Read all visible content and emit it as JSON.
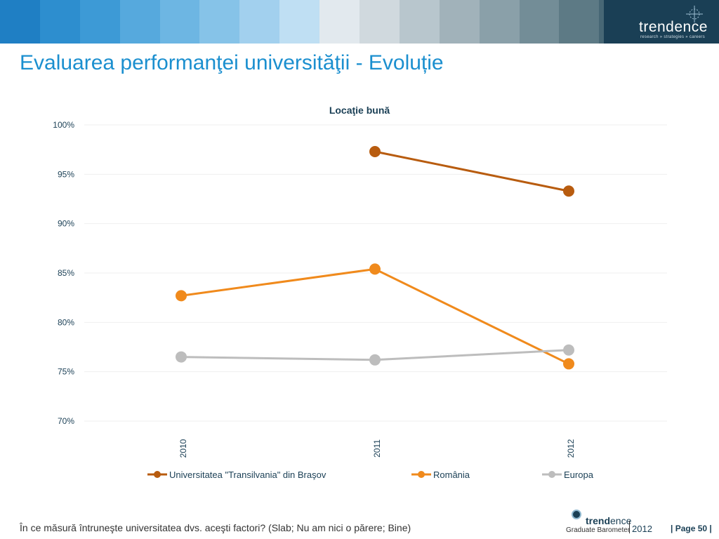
{
  "header": {
    "banner_colors": [
      "#1f7fc4",
      "#2d8ecf",
      "#3d9ad6",
      "#56a9dd",
      "#6db6e3",
      "#86c3e8",
      "#a2d0ee",
      "#bfdff3",
      "#e2e9ee",
      "#d0d9de",
      "#b8c6cd",
      "#a1b2ba",
      "#8aa0a9",
      "#738d97",
      "#5d7a85",
      "#476775",
      "#345666",
      "#244756"
    ],
    "brand_bg": "#1a3f55",
    "brand_name": "trendence",
    "brand_tagline": "research » strategies » careers"
  },
  "page_title": "Evaluarea performanţei universităţii - Evoluție",
  "chart_data": {
    "type": "line",
    "title": "Locaţie bună",
    "categories": [
      "2010",
      "2011",
      "2012"
    ],
    "y_ticks": [
      "100%",
      "95%",
      "90%",
      "85%",
      "80%",
      "75%",
      "70%"
    ],
    "ylim": [
      70,
      100
    ],
    "grid": true,
    "legend_position": "bottom",
    "series": [
      {
        "name": "Universitatea \"Transilvania\" din Braşov",
        "color": "#b85c0f",
        "values": [
          null,
          97.3,
          93.3
        ]
      },
      {
        "name": "România",
        "color": "#f08a1c",
        "values": [
          82.7,
          85.4,
          75.8
        ]
      },
      {
        "name": "Europa",
        "color": "#bdbdbd",
        "values": [
          76.5,
          76.2,
          77.2
        ]
      }
    ]
  },
  "footer": {
    "question": "În ce măsură întruneşte universitatea dvs. aceşti factori? (Slab; Nu am nici o părere; Bine)",
    "logo_word_bold": "trend",
    "logo_word_rest": "ence",
    "logo_subtitle": "Graduate Barometer",
    "logo_year": "2012",
    "page_label": "| Page 50 |"
  }
}
